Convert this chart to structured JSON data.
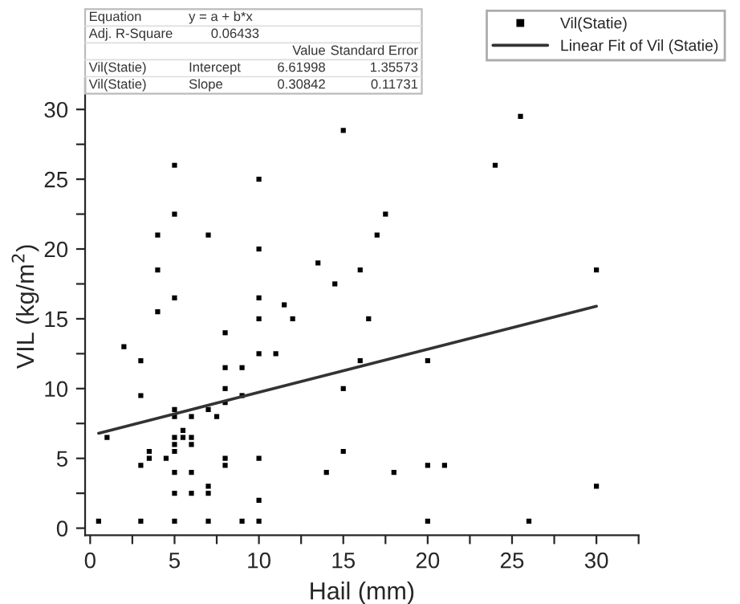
{
  "chart_data": {
    "type": "scatter",
    "xlabel": "Hail (mm)",
    "ylabel": "VIL (kg/m$^{2}$)",
    "xlim": [
      -0.3,
      32.5
    ],
    "ylim": [
      -0.5,
      32.3
    ],
    "xticks": [
      0,
      {
        "value": 2.5,
        "label": null
      },
      5,
      {
        "value": 7.5,
        "label": null
      },
      10,
      {
        "value": 12.5,
        "label": null
      },
      15,
      {
        "value": 17.5,
        "label": null
      },
      20,
      {
        "value": 22.5,
        "label": null
      },
      25,
      {
        "value": 27.5,
        "label": null
      },
      30,
      {
        "value": 32.5,
        "label": null
      }
    ],
    "yticks": [
      0,
      {
        "value": 2.5,
        "label": null
      },
      5,
      {
        "value": 7.5,
        "label": null
      },
      10,
      {
        "value": 12.5,
        "label": null
      },
      15,
      {
        "value": 17.5,
        "label": null
      },
      20,
      {
        "value": 22.5,
        "label": null
      },
      25,
      {
        "value": 27.5,
        "label": null
      },
      30
    ],
    "legend": "top right",
    "grid": false,
    "series": [
      {
        "name": "Vil(Statie)",
        "marker": "square",
        "color": "#000000",
        "x": [
          15,
          5,
          10,
          5,
          17.5,
          4,
          7,
          17,
          10,
          13.5,
          4,
          16,
          14.5,
          5,
          10,
          11.5,
          4,
          10,
          12,
          16.5,
          8,
          2,
          3,
          10,
          11,
          16,
          8,
          9,
          3,
          8,
          15,
          9,
          8,
          5,
          7,
          5,
          6,
          7.5,
          1,
          5.5,
          5,
          5.5,
          6,
          5,
          6,
          5,
          3.5,
          15,
          3.5,
          4.5,
          8,
          10,
          3,
          8,
          5,
          6,
          14,
          18,
          7,
          5,
          6,
          7,
          10,
          0.5,
          3,
          5,
          7,
          9,
          10,
          25.5,
          24,
          30,
          20,
          20,
          21,
          30,
          20,
          26
        ],
        "values": [
          28.5,
          26,
          25,
          22.5,
          22.5,
          21,
          21,
          21,
          20,
          19,
          18.5,
          18.5,
          17.5,
          16.5,
          16.5,
          16,
          15.5,
          15,
          15,
          15,
          14,
          13,
          12,
          12.5,
          12.5,
          12,
          11.5,
          11.5,
          9.5,
          10,
          10,
          9.5,
          9,
          8.5,
          8.5,
          8,
          8,
          8,
          6.5,
          7,
          6.5,
          6.5,
          6.5,
          6,
          6,
          5.5,
          5.5,
          5.5,
          5,
          5,
          5,
          5,
          4.5,
          4.5,
          4,
          4,
          4,
          4,
          3,
          2.5,
          2.5,
          2.5,
          2,
          0.5,
          0.5,
          0.5,
          0.5,
          0.5,
          0.5,
          29.5,
          26,
          18.5,
          12,
          4.5,
          4.5,
          3,
          0.5,
          0.5
        ]
      },
      {
        "name": "Linear Fit of Vil (Statie)",
        "type": "line",
        "color": "#333333",
        "line_style": "solid",
        "x": [
          0.5,
          30
        ],
        "values": [
          6.8,
          15.9
        ]
      }
    ],
    "annotations": [
      "Equation",
      "y = a + b*x",
      "Adj. R-Square",
      "0.06433",
      "Value",
      "Standard Error",
      "Vil(Statie)",
      "Intercept",
      "6.61998",
      "1.35573",
      "Vil(Statie)",
      "Slope",
      "0.30842",
      "0.11731"
    ]
  }
}
